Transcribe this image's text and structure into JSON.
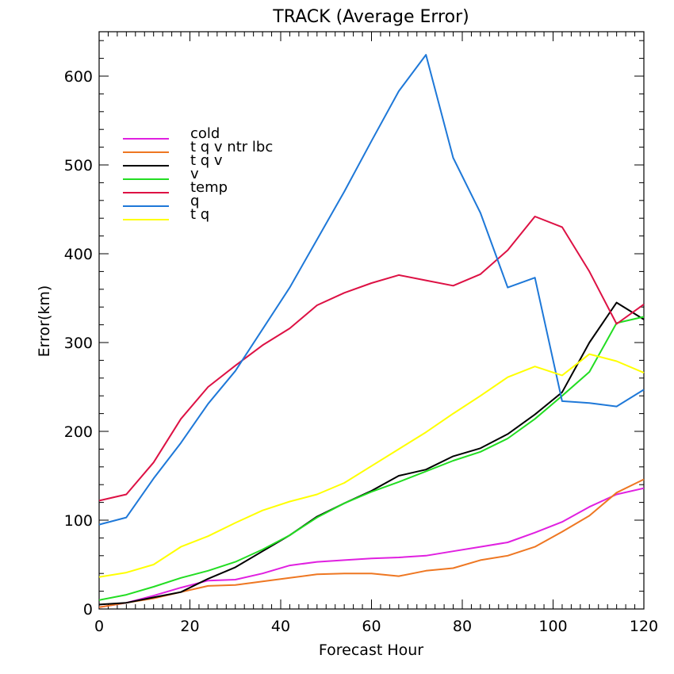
{
  "chart_data": {
    "type": "line",
    "title": "TRACK (Average Error)",
    "xlabel": "Forecast Hour",
    "ylabel": "Error(km)",
    "xlim": [
      0,
      120
    ],
    "ylim": [
      0,
      650
    ],
    "xticks": [
      0,
      20,
      40,
      60,
      80,
      100,
      120
    ],
    "xtick_labels": [
      "0",
      "20",
      "40",
      "60",
      "80",
      "100",
      "120"
    ],
    "yticks": [
      0,
      100,
      200,
      300,
      400,
      500,
      600
    ],
    "ytick_labels": [
      "0",
      "100",
      "200",
      "300",
      "400",
      "500",
      "600"
    ],
    "grid": false,
    "legend_position": "upper-left",
    "x": [
      0,
      6,
      12,
      18,
      24,
      30,
      36,
      42,
      48,
      54,
      60,
      66,
      72,
      78,
      84,
      90,
      96,
      102,
      108,
      114,
      120
    ],
    "series": [
      {
        "name": "cold",
        "color": "#e020e0",
        "values": [
          2,
          7,
          15,
          24,
          32,
          33,
          40,
          49,
          53,
          55,
          57,
          58,
          60,
          65,
          70,
          75,
          86,
          98,
          115,
          129,
          136
        ]
      },
      {
        "name": "t q v ntr lbc",
        "color": "#ee7722",
        "values": [
          2,
          7,
          12,
          19,
          26,
          27,
          31,
          35,
          39,
          40,
          40,
          37,
          43,
          46,
          55,
          60,
          70,
          87,
          105,
          131,
          146
        ]
      },
      {
        "name": "t q v",
        "color": "#000000",
        "values": [
          5,
          7,
          13,
          19,
          34,
          47,
          65,
          83,
          104,
          119,
          133,
          150,
          157,
          172,
          181,
          197,
          219,
          244,
          300,
          345,
          326
        ]
      },
      {
        "name": "v",
        "color": "#22dd22",
        "values": [
          10,
          16,
          25,
          35,
          43,
          53,
          67,
          83,
          103,
          119,
          132,
          143,
          155,
          167,
          177,
          192,
          214,
          240,
          267,
          322,
          329
        ]
      },
      {
        "name": "temp",
        "color": "#dd1144",
        "values": [
          122,
          129,
          165,
          214,
          250,
          274,
          297,
          316,
          342,
          356,
          367,
          376,
          370,
          364,
          377,
          404,
          442,
          430,
          380,
          321,
          343
        ]
      },
      {
        "name": "q",
        "color": "#1e78d8",
        "values": [
          95,
          103,
          147,
          187,
          231,
          268,
          315,
          362,
          416,
          470,
          527,
          583,
          624,
          508,
          446,
          362,
          373,
          234,
          232,
          228,
          247
        ]
      },
      {
        "name": "t q",
        "color": "#ffff00",
        "values": [
          36,
          41,
          50,
          70,
          82,
          97,
          111,
          121,
          129,
          142,
          161,
          180,
          199,
          220,
          240,
          261,
          273,
          263,
          287,
          279,
          266
        ]
      }
    ]
  }
}
